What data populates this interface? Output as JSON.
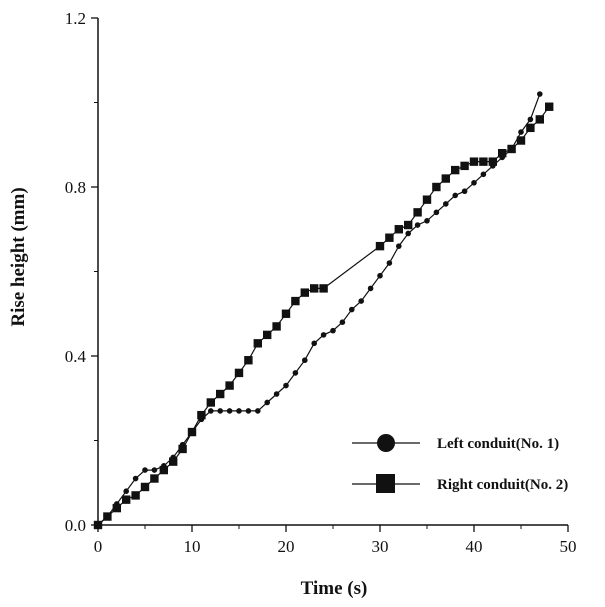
{
  "chart_data": {
    "type": "line",
    "xlabel": "Time (s)",
    "ylabel": "Rise height (mm)",
    "xlim": [
      0,
      50
    ],
    "ylim": [
      0,
      1.2
    ],
    "xticks": [
      0,
      10,
      20,
      30,
      40,
      50
    ],
    "yticks": [
      0.0,
      0.4,
      0.8,
      1.2
    ],
    "xtick_labels": [
      "0",
      "10",
      "20",
      "30",
      "40",
      "50"
    ],
    "ytick_labels": [
      "0.0",
      "0.4",
      "0.8",
      "1.2"
    ],
    "grid": false,
    "legend_position": "lower-right",
    "series": [
      {
        "name": "Left conduit(No. 1)",
        "marker": "circle",
        "color": "#111111",
        "points": [
          [
            0,
            0.0
          ],
          [
            1,
            0.02
          ],
          [
            2,
            0.05
          ],
          [
            3,
            0.08
          ],
          [
            4,
            0.11
          ],
          [
            5,
            0.13
          ],
          [
            6,
            0.13
          ],
          [
            7,
            0.14
          ],
          [
            8,
            0.16
          ],
          [
            9,
            0.19
          ],
          [
            10,
            0.22
          ],
          [
            11,
            0.25
          ],
          [
            12,
            0.27
          ],
          [
            13,
            0.27
          ],
          [
            14,
            0.27
          ],
          [
            15,
            0.27
          ],
          [
            16,
            0.27
          ],
          [
            17,
            0.27
          ],
          [
            18,
            0.29
          ],
          [
            19,
            0.31
          ],
          [
            20,
            0.33
          ],
          [
            21,
            0.36
          ],
          [
            22,
            0.39
          ],
          [
            23,
            0.43
          ],
          [
            24,
            0.45
          ],
          [
            25,
            0.46
          ],
          [
            26,
            0.48
          ],
          [
            27,
            0.51
          ],
          [
            28,
            0.53
          ],
          [
            29,
            0.56
          ],
          [
            30,
            0.59
          ],
          [
            31,
            0.62
          ],
          [
            32,
            0.66
          ],
          [
            33,
            0.69
          ],
          [
            34,
            0.71
          ],
          [
            35,
            0.72
          ],
          [
            36,
            0.74
          ],
          [
            37,
            0.76
          ],
          [
            38,
            0.78
          ],
          [
            39,
            0.79
          ],
          [
            40,
            0.81
          ],
          [
            41,
            0.83
          ],
          [
            42,
            0.85
          ],
          [
            43,
            0.87
          ],
          [
            44,
            0.89
          ],
          [
            45,
            0.93
          ],
          [
            46,
            0.96
          ],
          [
            47,
            1.02
          ]
        ]
      },
      {
        "name": "Right conduit(No. 2)",
        "marker": "square",
        "color": "#111111",
        "points": [
          [
            0,
            0.0
          ],
          [
            1,
            0.02
          ],
          [
            2,
            0.04
          ],
          [
            3,
            0.06
          ],
          [
            4,
            0.07
          ],
          [
            5,
            0.09
          ],
          [
            6,
            0.11
          ],
          [
            7,
            0.13
          ],
          [
            8,
            0.15
          ],
          [
            9,
            0.18
          ],
          [
            10,
            0.22
          ],
          [
            11,
            0.26
          ],
          [
            12,
            0.29
          ],
          [
            13,
            0.31
          ],
          [
            14,
            0.33
          ],
          [
            15,
            0.36
          ],
          [
            16,
            0.39
          ],
          [
            17,
            0.43
          ],
          [
            18,
            0.45
          ],
          [
            19,
            0.47
          ],
          [
            20,
            0.5
          ],
          [
            21,
            0.53
          ],
          [
            22,
            0.55
          ],
          [
            23,
            0.56
          ],
          [
            24,
            0.56
          ],
          [
            30,
            0.66
          ],
          [
            31,
            0.68
          ],
          [
            32,
            0.7
          ],
          [
            33,
            0.71
          ],
          [
            34,
            0.74
          ],
          [
            35,
            0.77
          ],
          [
            36,
            0.8
          ],
          [
            37,
            0.82
          ],
          [
            38,
            0.84
          ],
          [
            39,
            0.85
          ],
          [
            40,
            0.86
          ],
          [
            41,
            0.86
          ],
          [
            42,
            0.86
          ],
          [
            43,
            0.88
          ],
          [
            44,
            0.89
          ],
          [
            45,
            0.91
          ],
          [
            46,
            0.94
          ],
          [
            47,
            0.96
          ],
          [
            48,
            0.99
          ]
        ]
      }
    ]
  }
}
